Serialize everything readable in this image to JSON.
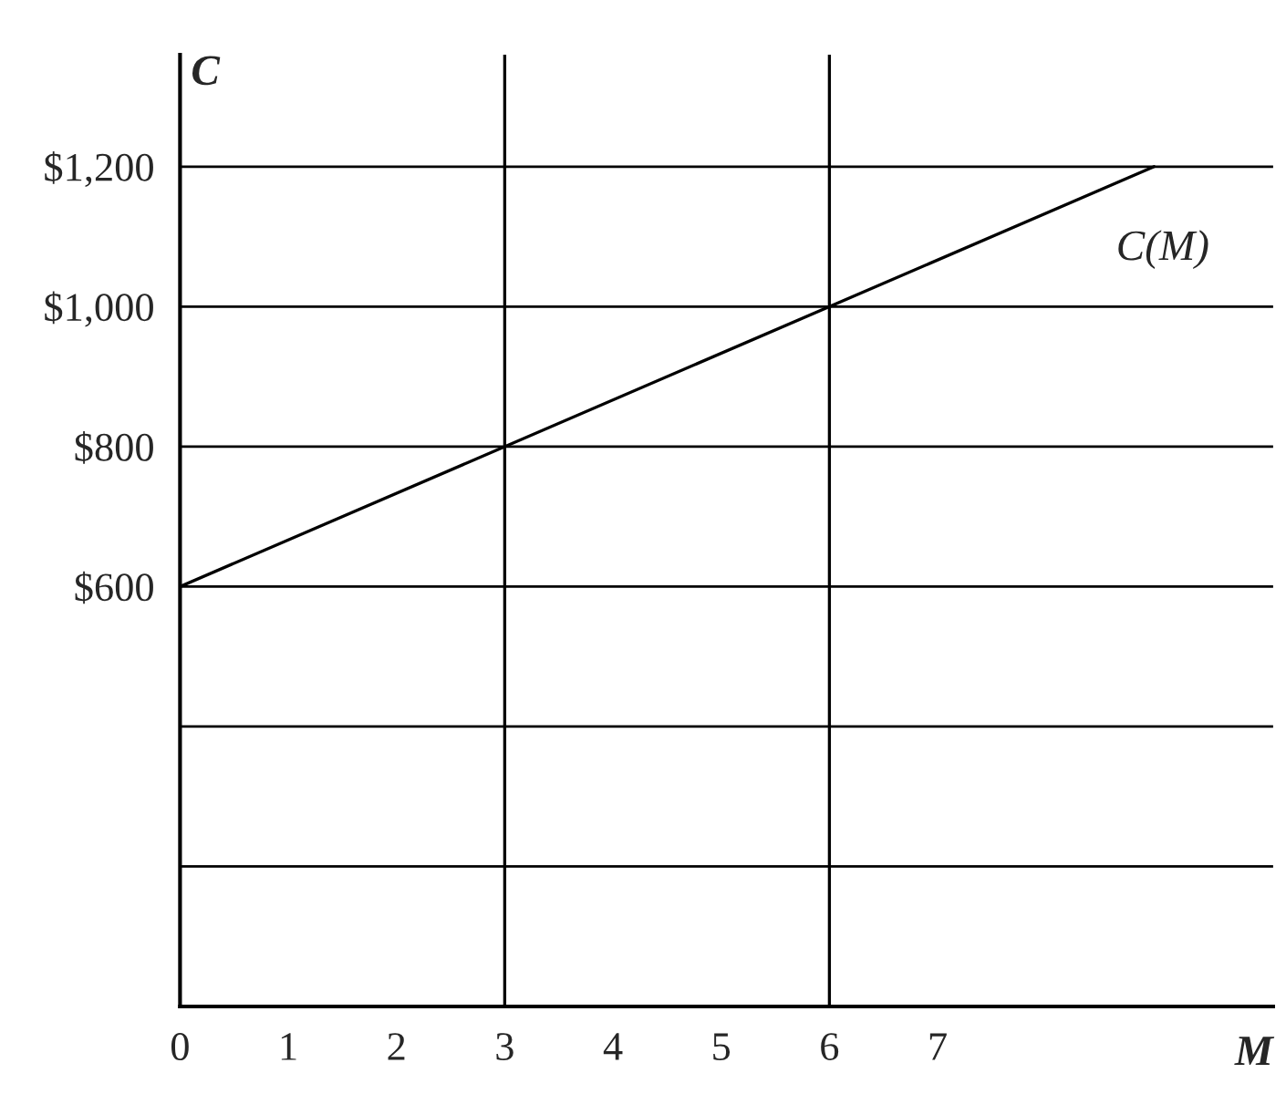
{
  "chart_data": {
    "type": "line",
    "xlabel": "M",
    "ylabel": "C",
    "x": [
      0,
      9
    ],
    "series": [
      {
        "color": "#000000",
        "values": [
          600,
          1200
        ]
      }
    ],
    "xlim": [
      0,
      10.1
    ],
    "ylim": [
      0,
      1360
    ],
    "xticks": [
      0,
      1,
      2,
      3,
      4,
      5,
      6,
      7
    ],
    "yticks": [
      {
        "value": 200,
        "label": null
      },
      {
        "value": 400,
        "label": null
      },
      {
        "value": 600,
        "label": "$600"
      },
      {
        "value": 800,
        "label": "$800"
      },
      {
        "value": 1000,
        "label": "$1,000"
      },
      {
        "value": 1200,
        "label": "$1,200"
      }
    ],
    "grid": "y",
    "ref_lines": [
      {
        "axis": "x",
        "value": 3,
        "color": "#000000"
      },
      {
        "axis": "x",
        "value": 6,
        "color": "#000000"
      }
    ],
    "annotations": [
      "C(M)"
    ],
    "marker": "none",
    "line_style": "solid",
    "legend": false
  }
}
